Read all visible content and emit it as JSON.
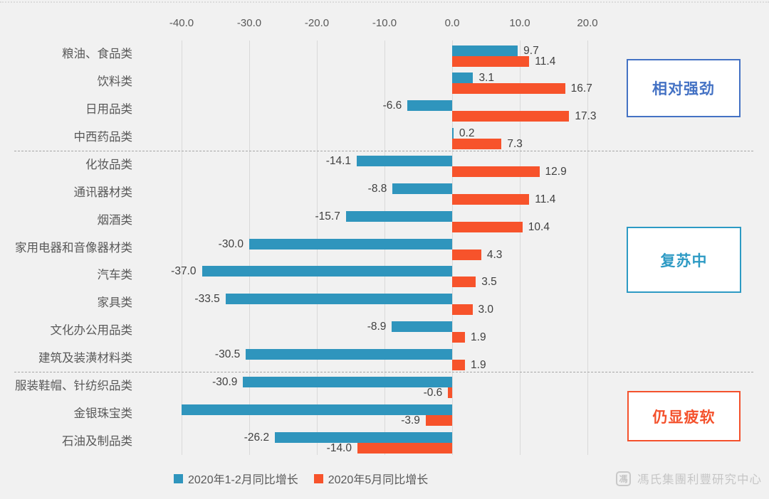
{
  "page": {
    "background": "#f1f1f1"
  },
  "chart_data": {
    "type": "bar",
    "orientation": "horizontal",
    "title": "",
    "xlabel": "",
    "ylabel": "",
    "xlim": [
      -40,
      22
    ],
    "grid": true,
    "legend_position": "bottom",
    "x_ticks": [
      "-40.0",
      "-30.0",
      "-20.0",
      "-10.0",
      "0.0",
      "10.0",
      "20.0"
    ],
    "x_tick_values": [
      -40,
      -30,
      -20,
      -10,
      0,
      10,
      20
    ],
    "categories": [
      "粮油、食品类",
      "饮料类",
      "日用品类",
      "中西药品类",
      "化妆品类",
      "通讯器材类",
      "烟酒类",
      "家用电器和音像器材类",
      "汽车类",
      "家具类",
      "文化办公用品类",
      "建筑及装潢材料类",
      "服装鞋帽、针纺织品类",
      "金银珠宝类",
      "石油及制品类"
    ],
    "series": [
      {
        "name": "2020年1-2月同比增长",
        "color": "#2f95bd",
        "values": [
          9.7,
          3.1,
          -6.6,
          0.2,
          -14.1,
          -8.8,
          -15.7,
          -30.0,
          -37.0,
          -33.5,
          -8.9,
          -30.5,
          -30.9,
          -40.0,
          -26.2
        ],
        "labels": [
          "9.7",
          "3.1",
          "-6.6",
          "0.2",
          "-14.1",
          "-8.8",
          "-15.7",
          "-30.0",
          "-37.0",
          "-33.5",
          "-8.9",
          "-30.5",
          "-30.9",
          "",
          "-26.2"
        ],
        "note": "金银珠宝类 bar is clipped at axis minimum and shows no data label"
      },
      {
        "name": "2020年5月同比增长",
        "color": "#f7532b",
        "values": [
          11.4,
          16.7,
          17.3,
          7.3,
          12.9,
          11.4,
          10.4,
          4.3,
          3.5,
          3.0,
          1.9,
          1.9,
          -0.6,
          -3.9,
          -14.0
        ],
        "labels": [
          "11.4",
          "16.7",
          "17.3",
          "7.3",
          "12.9",
          "11.4",
          "10.4",
          "4.3",
          "3.5",
          "3.0",
          "1.9",
          "1.9",
          "-0.6",
          "-3.9",
          "-14.0"
        ]
      }
    ],
    "separators_after_row": [
      3,
      11
    ]
  },
  "annotations": [
    {
      "label": "相对强劲",
      "color": "#4472c4"
    },
    {
      "label": "复苏中",
      "color": "#2d9ac4"
    },
    {
      "label": "仍显疲软",
      "color": "#f4512c"
    }
  ],
  "legend": [
    {
      "label": "2020年1-2月同比增长",
      "color": "#2f95bd"
    },
    {
      "label": "2020年5月同比增长",
      "color": "#f7532b"
    }
  ],
  "watermark": {
    "logo_glyph": "馮",
    "text": "馮氏集團利豐研究中心"
  }
}
